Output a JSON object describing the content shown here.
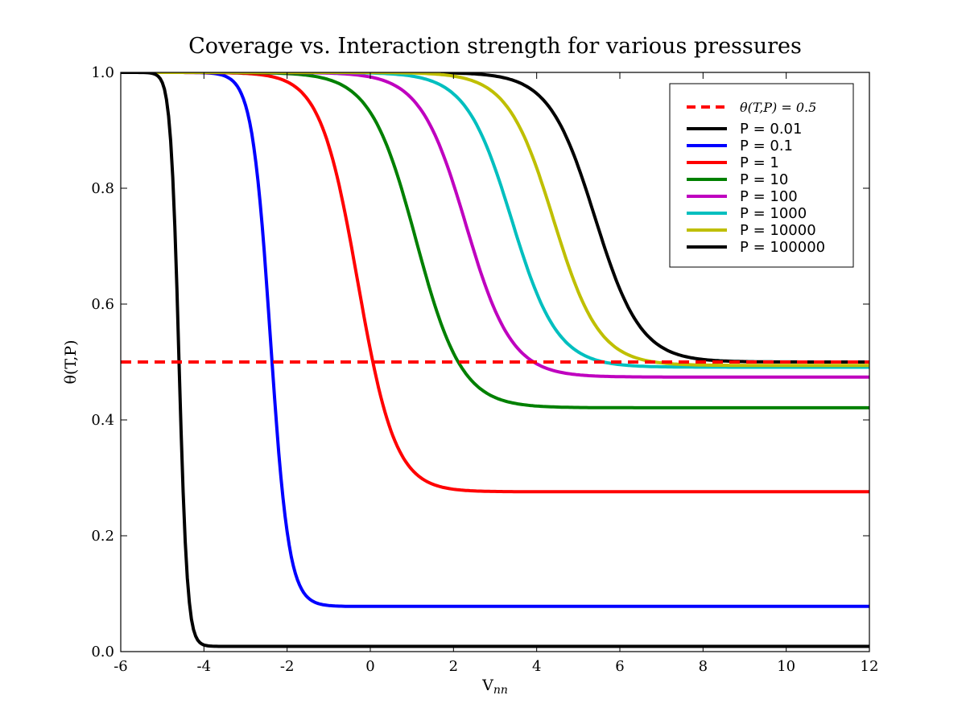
{
  "chart_data": {
    "type": "line",
    "title": "Coverage vs. Interaction strength for various pressures",
    "xlabel": "V_nn",
    "xlabel_main": "V",
    "xlabel_sub": "nn",
    "ylabel": "θ(T,P)",
    "xlim": [
      -6,
      12
    ],
    "ylim": [
      0,
      1
    ],
    "x_ticks": [
      -6,
      -4,
      -2,
      0,
      2,
      4,
      6,
      8,
      10,
      12
    ],
    "x_tick_labels": [
      "-6",
      "-4",
      "-2",
      "0",
      "2",
      "4",
      "6",
      "8",
      "10",
      "12"
    ],
    "y_ticks": [
      0,
      0.2,
      0.4,
      0.6,
      0.8,
      1.0
    ],
    "y_tick_labels": [
      "0.0",
      "0.2",
      "0.4",
      "0.6",
      "0.8",
      "1.0"
    ],
    "grid": false,
    "legend_position": "top-right",
    "reference_line": {
      "label": "θ(T,P) = 0.5",
      "y": 0.5,
      "color": "#ff0000",
      "style": "dashed"
    },
    "series": [
      {
        "name": "P = 0.01",
        "color": "#000000",
        "midpoint": 5.4,
        "width": 0.55,
        "plateau": 0.5
      },
      {
        "name": "P = 0.1",
        "color": "#0000ff",
        "midpoint": -2.4,
        "width": 0.22,
        "plateau": 0.078
      },
      {
        "name": "P = 1",
        "color": "#ff0000",
        "midpoint": -0.3,
        "width": 0.45,
        "plateau": 0.276
      },
      {
        "name": "P = 10",
        "color": "#008000",
        "midpoint": 1.1,
        "width": 0.55,
        "plateau": 0.421
      },
      {
        "name": "P = 100",
        "color": "#bf00bf",
        "midpoint": 2.3,
        "width": 0.55,
        "plateau": 0.474
      },
      {
        "name": "P = 1000",
        "color": "#00bfbf",
        "midpoint": 3.4,
        "width": 0.55,
        "plateau": 0.491
      },
      {
        "name": "P = 10000",
        "color": "#bfbf00",
        "midpoint": 4.4,
        "width": 0.55,
        "plateau": 0.494
      },
      {
        "name": "P = 100000",
        "color": "#000000",
        "midpoint": -4.6,
        "width": 0.1,
        "plateau": 0.009
      }
    ]
  }
}
